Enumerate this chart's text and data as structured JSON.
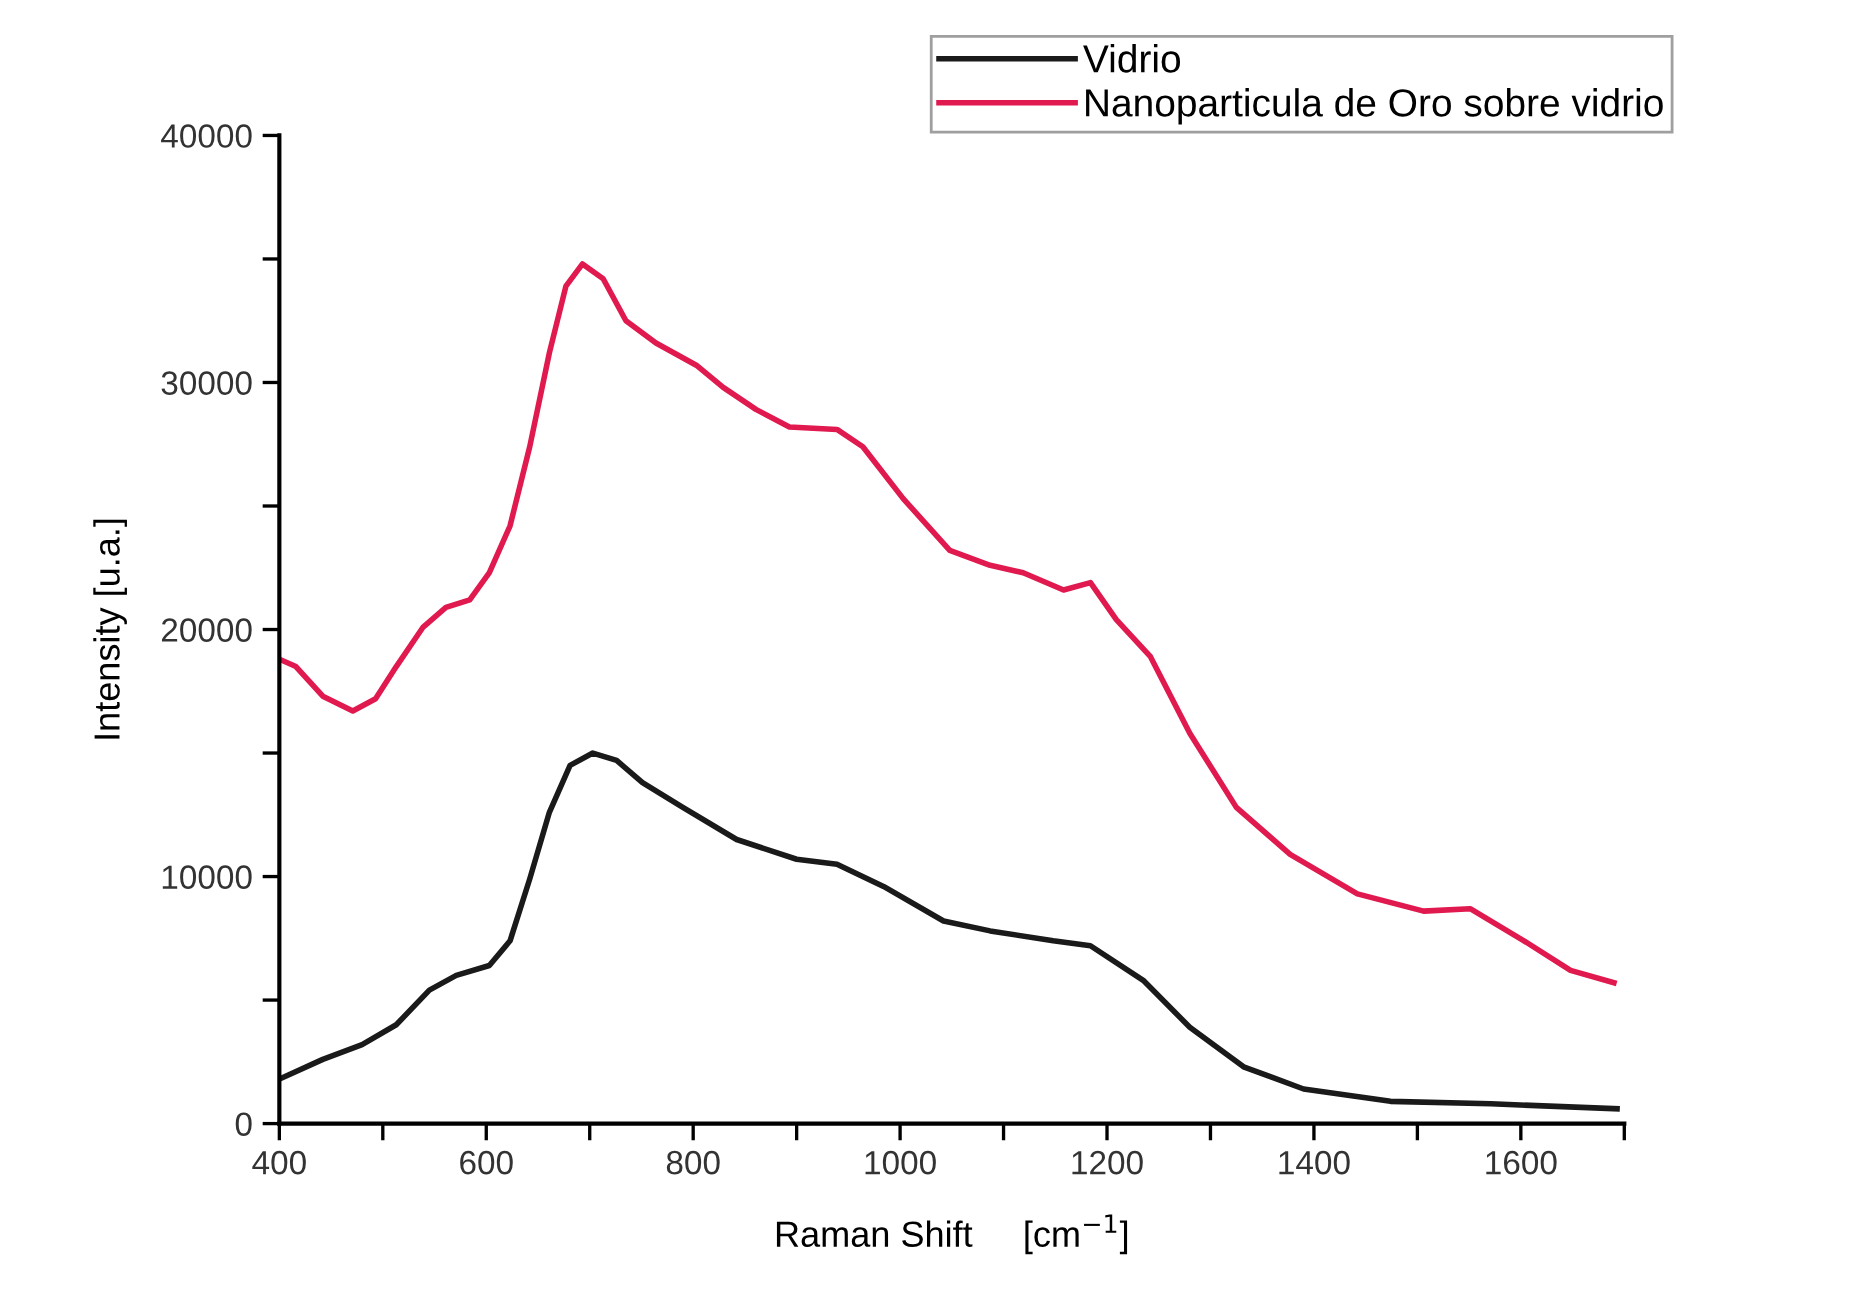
{
  "chart_data": {
    "type": "line",
    "xlabel": "Raman Shift     [cm$^{−1}$]",
    "ylabel": "Intensity [u.a.]",
    "xlim": [
      400,
      1700
    ],
    "ylim": [
      0,
      40000
    ],
    "xticks": [
      400,
      {
        "value": 500,
        "label": null
      },
      600,
      {
        "value": 700,
        "label": null
      },
      800,
      {
        "value": 900,
        "label": null
      },
      1000,
      {
        "value": 1100,
        "label": null
      },
      1200,
      {
        "value": 1300,
        "label": null
      },
      1400,
      {
        "value": 1500,
        "label": null
      },
      1600,
      {
        "value": 1700,
        "label": null
      }
    ],
    "yticks": [
      0,
      {
        "value": 5000,
        "label": null
      },
      10000,
      {
        "value": 15000,
        "label": null
      },
      20000,
      {
        "value": 25000,
        "label": null
      },
      30000,
      {
        "value": 35000,
        "label": null
      },
      40000
    ],
    "grid": false,
    "legend": "top right",
    "marker": "none",
    "line_style": "solid",
    "series": [
      {
        "name": "Vidrio",
        "color": "#1a1a1a",
        "x": [
          400,
          442,
          480,
          513,
          545,
          571,
          603,
          623,
          642,
          661,
          681,
          703,
          726,
          751,
          790,
          842,
          900,
          939,
          984,
          1042,
          1087,
          1148,
          1184,
          1235,
          1280,
          1332,
          1390,
          1474,
          1571,
          1693
        ],
        "values": [
          1800,
          2600,
          3200,
          4000,
          5400,
          6000,
          6400,
          7400,
          9900,
          12600,
          14500,
          15000,
          14700,
          13800,
          12800,
          11500,
          10700,
          10500,
          9600,
          8200,
          7800,
          7400,
          7200,
          5800,
          3900,
          2300,
          1400,
          900,
          800,
          600
        ]
      },
      {
        "name": "Nanoparticula de Oro sobre vidrio",
        "color": "#e0194f",
        "x": [
          400,
          416,
          442,
          471,
          493,
          513,
          539,
          561,
          584,
          603,
          623,
          642,
          661,
          677,
          693,
          713,
          735,
          764,
          803,
          829,
          861,
          893,
          939,
          964,
          1003,
          1048,
          1087,
          1119,
          1158,
          1184,
          1209,
          1242,
          1280,
          1325,
          1377,
          1442,
          1506,
          1551,
          1603,
          1648,
          1690
        ],
        "values": [
          18800,
          18500,
          17300,
          16700,
          17200,
          18500,
          20100,
          20900,
          21200,
          22300,
          24200,
          27400,
          31200,
          33900,
          34800,
          34200,
          32500,
          31600,
          30700,
          29800,
          28900,
          28200,
          28100,
          27400,
          25300,
          23200,
          22600,
          22300,
          21600,
          21900,
          20400,
          18900,
          15800,
          12800,
          10900,
          9300,
          8600,
          8700,
          7400,
          6200,
          5700
        ]
      }
    ]
  }
}
